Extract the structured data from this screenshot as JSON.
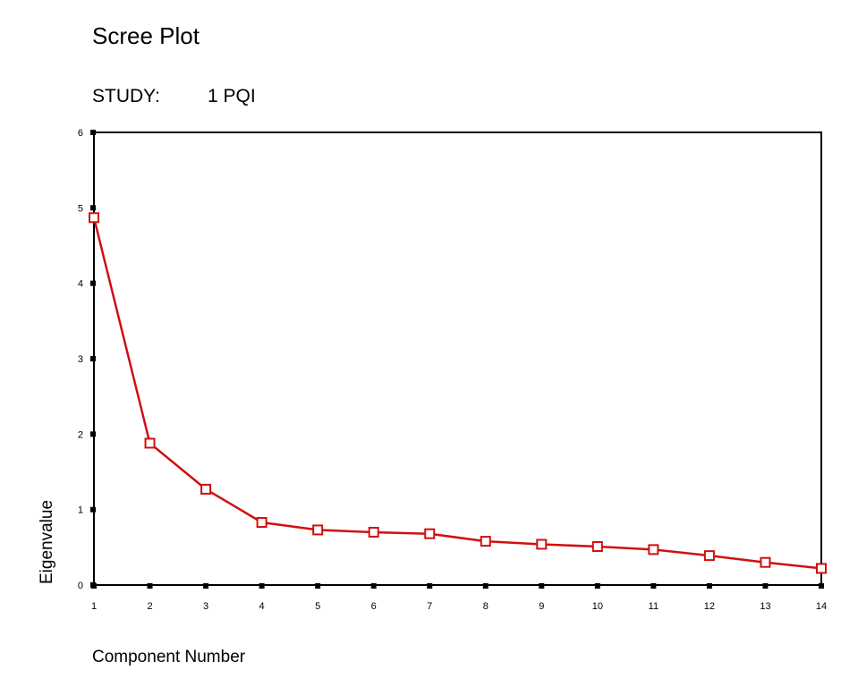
{
  "chart_data": {
    "type": "line",
    "title": "Scree Plot",
    "subtitle_label": "STUDY:",
    "subtitle_value": "1  PQI",
    "xlabel": "Component Number",
    "ylabel": "Eigenvalue",
    "x": [
      1,
      2,
      3,
      4,
      5,
      6,
      7,
      8,
      9,
      10,
      11,
      12,
      13,
      14
    ],
    "values": [
      4.87,
      1.88,
      1.27,
      0.83,
      0.73,
      0.7,
      0.68,
      0.58,
      0.54,
      0.51,
      0.47,
      0.39,
      0.3,
      0.22
    ],
    "ylim": [
      0,
      6
    ],
    "xlim": [
      1,
      14
    ],
    "yticks": [
      0,
      1,
      2,
      3,
      4,
      5,
      6
    ],
    "xticks": [
      1,
      2,
      3,
      4,
      5,
      6,
      7,
      8,
      9,
      10,
      11,
      12,
      13,
      14
    ],
    "grid": false,
    "marker": "open-square",
    "series_color": "#d01010"
  }
}
